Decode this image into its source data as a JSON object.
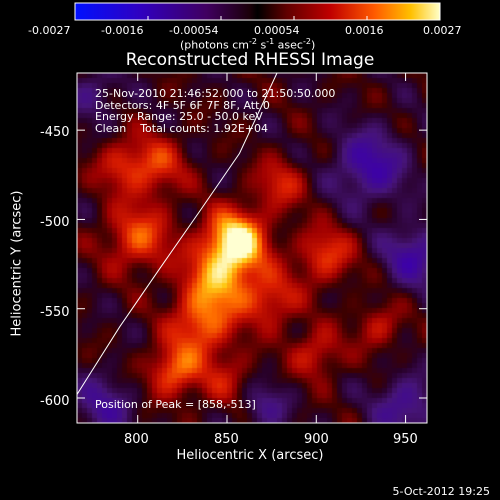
{
  "colorbar": {
    "ticks": [
      "-0.0027",
      "-0.0016",
      "-0.00054",
      "0.00054",
      "0.0016",
      "0.0027"
    ],
    "units_main": "(photons cm",
    "units_sup1": "-2",
    "units_mid": " s",
    "units_sup2": "-1",
    "units_end": " asec",
    "units_sup3": "-2",
    "units_close": ")"
  },
  "info": {
    "time": "25-Nov-2010 21:46:52.000 to 21:50:50.000",
    "detectors": "Detectors: 4F 5F 6F 7F 8F, Att 0",
    "energy": "Energy Range: 25.0 - 50.0 keV",
    "clean": "Clean    Total counts: 1.92E+04"
  },
  "peak_label": "Position of Peak = [858,-513]",
  "footer_date": "5-Oct-2012 19:25",
  "chart_data": {
    "type": "heatmap",
    "title": "Reconstructed RHESSI Image",
    "xlabel": "Heliocentric X (arcsec)",
    "ylabel": "Heliocentric Y (arcsec)",
    "xlim": [
      766,
      962
    ],
    "ylim": [
      -614,
      -418
    ],
    "xticks": [
      800,
      850,
      900,
      950
    ],
    "yticks": [
      -450,
      -500,
      -550,
      -600
    ],
    "colorbar_range": [
      -0.0027,
      0.0027
    ],
    "peak": [
      858,
      -513
    ],
    "limb_curve": [
      [
        766,
        -598
      ],
      [
        790,
        -560
      ],
      [
        812,
        -528
      ],
      [
        835,
        -495
      ],
      [
        857,
        -463
      ],
      [
        878,
        -418
      ]
    ],
    "sources": [
      {
        "x": 855,
        "y": -512,
        "amp": 1.0,
        "sigma": 12
      },
      {
        "x": 845,
        "y": -535,
        "amp": 0.65,
        "sigma": 14
      },
      {
        "x": 835,
        "y": -560,
        "amp": 0.55,
        "sigma": 12
      },
      {
        "x": 820,
        "y": -585,
        "amp": 0.6,
        "sigma": 10
      },
      {
        "x": 800,
        "y": -510,
        "amp": 0.55,
        "sigma": 13
      },
      {
        "x": 810,
        "y": -470,
        "amp": 0.45,
        "sigma": 12
      },
      {
        "x": 790,
        "y": -470,
        "amp": 0.35,
        "sigma": 10
      },
      {
        "x": 875,
        "y": -545,
        "amp": 0.45,
        "sigma": 11
      },
      {
        "x": 880,
        "y": -480,
        "amp": 0.4,
        "sigma": 10
      },
      {
        "x": 905,
        "y": -520,
        "amp": 0.5,
        "sigma": 11
      },
      {
        "x": 900,
        "y": -575,
        "amp": 0.4,
        "sigma": 10
      },
      {
        "x": 935,
        "y": -560,
        "amp": 0.35,
        "sigma": 9
      },
      {
        "x": 850,
        "y": -590,
        "amp": 0.3,
        "sigma": 12
      },
      {
        "x": 930,
        "y": -470,
        "amp": -0.55,
        "sigma": 14
      },
      {
        "x": 955,
        "y": -520,
        "amp": -0.5,
        "sigma": 12
      },
      {
        "x": 780,
        "y": -605,
        "amp": -0.4,
        "sigma": 12
      },
      {
        "x": 870,
        "y": -605,
        "amp": -0.35,
        "sigma": 10
      },
      {
        "x": 950,
        "y": -605,
        "amp": -0.45,
        "sigma": 12
      },
      {
        "x": 775,
        "y": -430,
        "amp": -0.3,
        "sigma": 10
      }
    ]
  }
}
